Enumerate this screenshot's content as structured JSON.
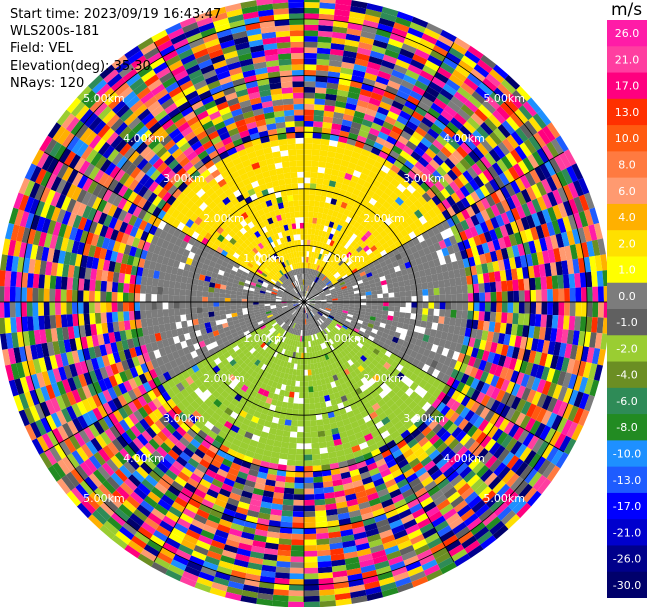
{
  "header": {
    "start_time": "Start time: 2023/09/19 16:43:47",
    "instrument": "WLS200s-181",
    "field": "Field: VEL",
    "elevation": "Elevation(deg): 35.30",
    "nrays": "NRays: 120"
  },
  "chart_data": {
    "type": "heatmap",
    "subtype": "polar-ppi",
    "nrays": 120,
    "range_rings_km": [
      1.0,
      2.0,
      3.0,
      4.0,
      5.0
    ],
    "ring_label_text": "km",
    "max_range_km": 5.3,
    "colorbar": {
      "unit": "m/s",
      "tick_labels": [
        "26.0",
        "21.0",
        "17.0",
        "13.0",
        "10.0",
        "8.0",
        "6.0",
        "4.0",
        "2.0",
        "1.0",
        "0.0",
        "-1.0",
        "-2.0",
        "-4.0",
        "-6.0",
        "-8.0",
        "-10.0",
        "-13.0",
        "-17.0",
        "-21.0",
        "-26.0",
        "-30.0"
      ],
      "colors": [
        "#ff1ca7",
        "#ff3ea0",
        "#ff007f",
        "#ff3000",
        "#ff5a10",
        "#ff7a40",
        "#ff9a70",
        "#ffb000",
        "#ffe000",
        "#ffff00",
        "#7c7c7c",
        "#606060",
        "#9acd32",
        "#6b8e23",
        "#2e8b57",
        "#228b22",
        "#1e90ff",
        "#1e5cff",
        "#0000ff",
        "#0000cd",
        "#00008b",
        "#00006b"
      ]
    },
    "regions": [
      {
        "name": "noise",
        "min_range_km": 2.9,
        "description": "random high-magnitude values"
      },
      {
        "name": "positive-yellow",
        "azimuth_deg": [
          300,
          60
        ],
        "range_km": [
          0.1,
          2.9
        ],
        "value_ms": 2.0
      },
      {
        "name": "near-zero-grey",
        "azimuth_deg": [
          60,
          120
        ],
        "range_km": [
          0.1,
          2.9
        ],
        "value_ms": 0.0
      },
      {
        "name": "negative-green",
        "azimuth_deg": [
          120,
          240
        ],
        "range_km": [
          0.1,
          2.9
        ],
        "value_ms": -2.0
      },
      {
        "name": "near-zero-grey-west",
        "azimuth_deg": [
          240,
          300
        ],
        "range_km": [
          0.1,
          2.9
        ],
        "value_ms": 0.0
      }
    ]
  }
}
